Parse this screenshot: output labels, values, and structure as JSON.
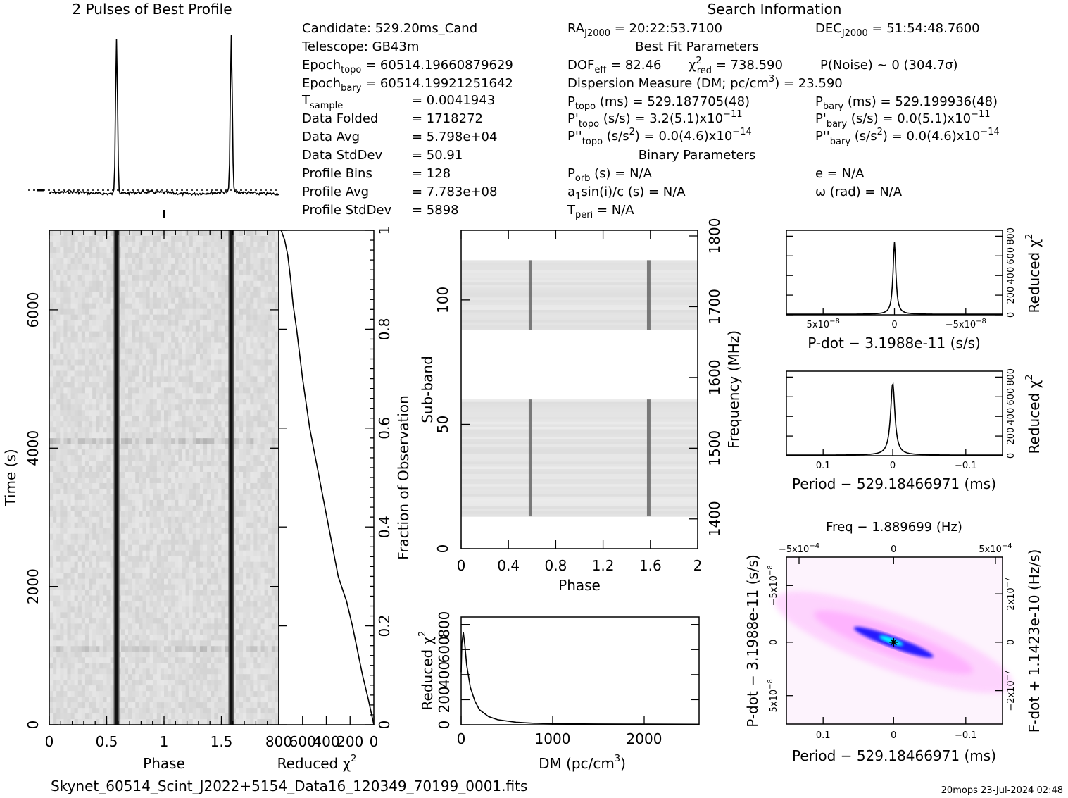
{
  "header": {
    "profile_title": "2 Pulses of Best Profile",
    "search_title": "Search Information"
  },
  "info": {
    "candidate": "Candidate:  529.20ms_Cand",
    "telescope": "Telescope:  GB43m",
    "epoch_topo_label": "Epoch",
    "epoch_topo_sub": "topo",
    "epoch_topo_val": " = 60514.19660879629",
    "epoch_bary_label": "Epoch",
    "epoch_bary_sub": "bary",
    "epoch_bary_val": " = 60514.19921251642",
    "tsample_label": "T",
    "tsample_sub": "sample",
    "tsample_val": "=  0.0041943",
    "folded_label": "Data Folded",
    "folded_val": "=  1718272",
    "avg_label": "Data Avg",
    "avg_val": "=  5.798e+04",
    "std_label": "Data StdDev",
    "std_val": "=  50.91",
    "bins_label": "Profile Bins",
    "bins_val": "=  128",
    "pavg_label": "Profile Avg",
    "pavg_val": "=  7.783e+08",
    "pstd_label": "Profile StdDev",
    "pstd_val": "=  5898"
  },
  "search": {
    "ra_label": "RA",
    "ra_sub": "J2000",
    "ra_val": " = 20:22:53.7100",
    "dec_label": "DEC",
    "dec_sub": "J2000",
    "dec_val": " = 51:54:48.7600",
    "best_fit_title": "Best Fit Parameters",
    "dof_label": "DOF",
    "dof_sub": "eff",
    "dof_val": " = 82.46",
    "chi_label": "χ",
    "chi_sup": "2",
    "chi_sub": "red",
    "chi_val": " = 738.590",
    "pnoise": "P(Noise) ~ 0   (304.7σ)",
    "dm_label": "Dispersion Measure (DM; pc/cm",
    "dm_sup": "3",
    "dm_val": ") = 23.590",
    "ptopo_label": "P",
    "ptopo_sub": "topo",
    "ptopo_val": " (ms) =  529.187705(48)",
    "pbary_label": "P",
    "pbary_sub": "bary",
    "pbary_val": " (ms) =  529.199936(48)",
    "pdtopo_label": "P'",
    "pdtopo_sub": "topo",
    "pdtopo_val": " (s/s) =  3.2(5.1)x10",
    "pdtopo_exp": "−11",
    "pdbary_label": "P'",
    "pdbary_sub": "bary",
    "pdbary_val": " (s/s) = 0.0(5.1)x10",
    "pdbary_exp": "−11",
    "pddtopo_label": "P''",
    "pddtopo_sub": "topo",
    "pddtopo_val": " (s/s",
    "pddtopo_sup": "2",
    "pddtopo_val2": ") = 0.0(4.6)x10",
    "pddtopo_exp": "−14",
    "pddbary_label": "P''",
    "pddbary_sub": "bary",
    "pddbary_val": " (s/s",
    "pddbary_sup": "2",
    "pddbary_val2": ") = 0.0(4.6)x10",
    "pddbary_exp": "−14",
    "binary_title": "Binary Parameters",
    "porb_label": "P",
    "porb_sub": "orb",
    "porb_val": " (s) = N/A",
    "e_text": "e = N/A",
    "a1_label": "a",
    "a1_sub": "1",
    "a1_val": "sin(i)/c (s) = N/A",
    "omega_text": "ω (rad) = N/A",
    "tperi_label": "T",
    "tperi_sub": "peri",
    "tperi_val": " = N/A"
  },
  "footer": {
    "filename": "Skynet_60514_Scint_J2022+5154_Data16_120349_70199_0001.fits",
    "stamp": "20mops 23-Jul-2024 02:48"
  },
  "chart_data": [
    {
      "id": "profile",
      "type": "line",
      "title": "2 Pulses of Best Profile",
      "x": "phase 0–2",
      "peaks_at_phase": [
        0.586,
        1.586
      ],
      "baseline_dashed": true
    },
    {
      "id": "time_phase",
      "type": "heatmap",
      "xlabel": "Phase",
      "ylabel": "Time (s)",
      "xlim": [
        0,
        2
      ],
      "ylim": [
        0,
        7150
      ],
      "x_ticks": [
        "0",
        "0.5",
        "1",
        "1.5"
      ],
      "y_ticks": [
        "0",
        "2000",
        "4000",
        "6000"
      ],
      "pulse_phases": [
        0.586,
        1.586
      ]
    },
    {
      "id": "chi_vs_fraction",
      "type": "line",
      "xlabel": "Reduced χ",
      "xlabel_sup": "2",
      "ylabel": "Fraction of Observation",
      "xlim": [
        800,
        0
      ],
      "ylim": [
        0,
        1
      ],
      "x_ticks": [
        "800",
        "600",
        "400",
        "200",
        "0"
      ],
      "y_ticks": [
        "0",
        "0.2",
        "0.4",
        "0.6",
        "0.8",
        "1"
      ],
      "x": [
        0,
        45,
        95,
        180,
        230,
        300,
        380,
        460,
        540,
        600,
        650,
        680,
        700,
        725,
        750,
        780
      ],
      "y": [
        0.0,
        0.05,
        0.1,
        0.2,
        0.25,
        0.3,
        0.4,
        0.5,
        0.6,
        0.7,
        0.8,
        0.85,
        0.9,
        0.95,
        0.98,
        1.0
      ]
    },
    {
      "id": "subband_phase",
      "type": "heatmap",
      "xlabel": "Phase",
      "ylabel": "Sub-band",
      "y2label": "Frequency (MHz)",
      "xlim": [
        0,
        2
      ],
      "ylim": [
        0,
        128
      ],
      "x_ticks": [
        "0",
        "0.4",
        "0.8",
        "1.2",
        "1.6",
        "2"
      ],
      "y_ticks": [
        "0",
        "50",
        "100"
      ],
      "y2_ticks": [
        "1400",
        "1500",
        "1600",
        "1700",
        "1800"
      ],
      "pulse_phases": [
        0.586,
        1.586
      ],
      "active_bands": [
        [
          13,
          60
        ],
        [
          88,
          116
        ]
      ]
    },
    {
      "id": "dm_curve",
      "type": "line",
      "xlabel": "DM (pc/cm",
      "xlabel_sup": "3",
      "xlabel_end": ")",
      "ylabel": "Reduced χ",
      "ylabel_sup": "2",
      "xlim": [
        0,
        2600
      ],
      "ylim": [
        0,
        860
      ],
      "x_ticks": [
        "0",
        "1000",
        "2000"
      ],
      "y_ticks": [
        "0",
        "200",
        "400",
        "600",
        "800"
      ],
      "x": [
        0,
        8,
        23.59,
        40,
        60,
        100,
        150,
        200,
        300,
        400,
        600,
        800,
        1000,
        1500,
        2000,
        2600
      ],
      "y": [
        420,
        650,
        738,
        640,
        480,
        300,
        190,
        120,
        65,
        40,
        20,
        12,
        8,
        6,
        5,
        4
      ]
    },
    {
      "id": "pdot_curve",
      "type": "line",
      "xlabel": "P-dot − 3.1988e-11 (s/s)",
      "ylabel": "Reduced χ",
      "ylabel_sup": "2",
      "x_ticks": [
        "5x10",
        "0",
        "−5x10"
      ],
      "x_tick_exp": "−8",
      "y_ticks": [
        "0",
        "200",
        "400",
        "600",
        "800"
      ],
      "ylim": [
        0,
        860
      ],
      "peak": 738.59
    },
    {
      "id": "period_curve",
      "type": "line",
      "xlabel": "Period − 529.18466971 (ms)",
      "ylabel": "Reduced χ",
      "ylabel_sup": "2",
      "x_ticks": [
        "0.1",
        "0",
        "−0.1"
      ],
      "y_ticks": [
        "0",
        "200",
        "400",
        "600",
        "800"
      ],
      "ylim": [
        0,
        860
      ],
      "peak": 738.59
    },
    {
      "id": "p_pdot_plane",
      "type": "heatmap",
      "title": "Freq − 1.889699 (Hz)",
      "xlabel": "Period − 529.18466971 (ms)",
      "ylabel": "P-dot − 3.1988e-11 (s/s)",
      "y2label": "F-dot + 1.1423e-10 (Hz/s)",
      "x_ticks": [
        "0.1",
        "0",
        "−0.1"
      ],
      "top_ticks": [
        "−5x10",
        "0",
        "5x10"
      ],
      "top_tick_exp": "−4",
      "y_ticks": [
        "−5x10",
        "0",
        "5x10"
      ],
      "y_tick_exp": "−8",
      "y2_ticks": [
        "2x10",
        "0",
        "−2x10"
      ],
      "y2_tick_exp": "−7",
      "colors": [
        "#ffffff",
        "#ff99ff",
        "#0000ff",
        "#00ffff"
      ]
    }
  ]
}
